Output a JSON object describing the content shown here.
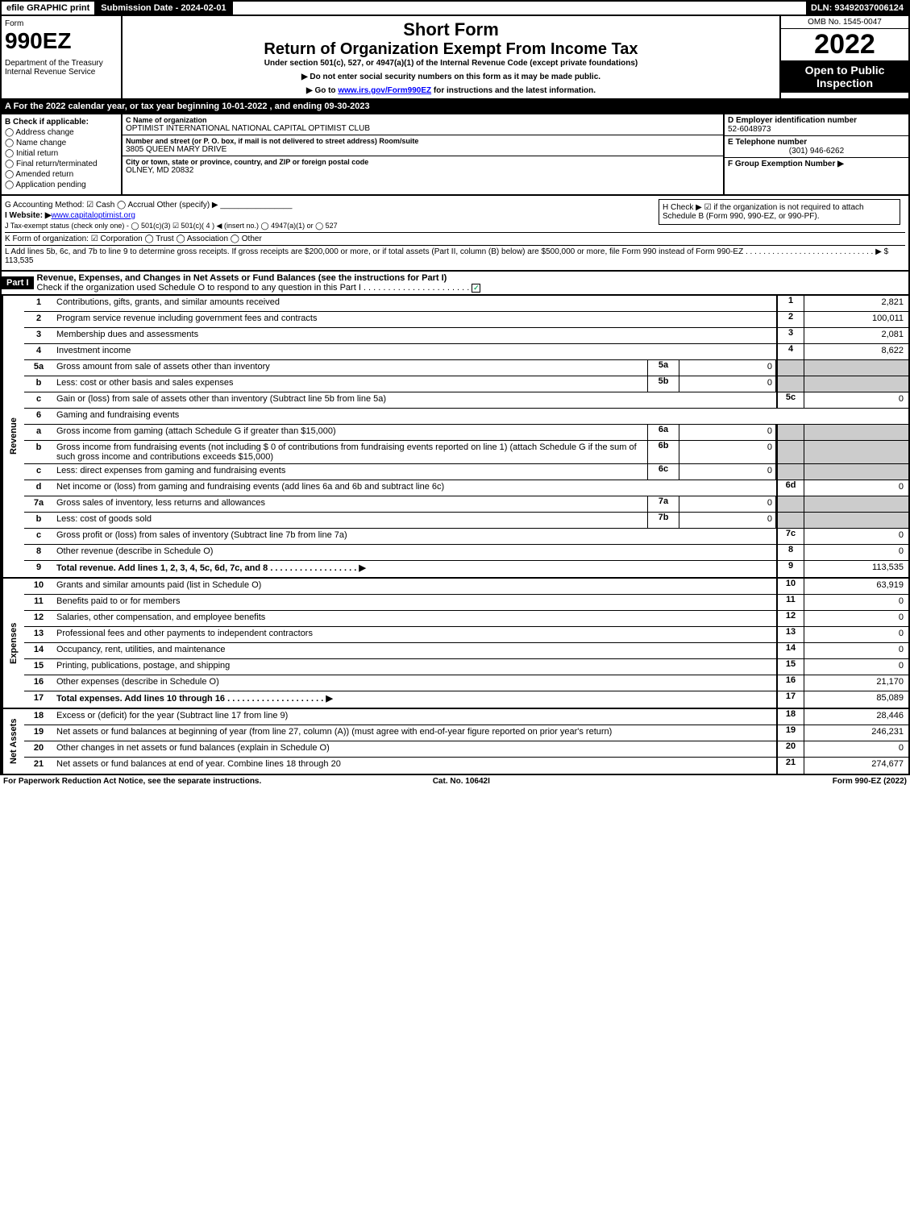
{
  "topbar": {
    "efile": "efile GRAPHIC print",
    "subdate": "Submission Date - 2024-02-01",
    "dln": "DLN: 93492037006124"
  },
  "header": {
    "form": "Form",
    "num": "990EZ",
    "dept": "Department of the Treasury\nInternal Revenue Service",
    "sf": "Short Form",
    "roe": "Return of Organization Exempt From Income Tax",
    "under": "Under section 501(c), 527, or 4947(a)(1) of the Internal Revenue Code (except private foundations)",
    "note1": "▶ Do not enter social security numbers on this form as it may be made public.",
    "note2_pre": "▶ Go to ",
    "note2_link": "www.irs.gov/Form990EZ",
    "note2_post": " for instructions and the latest information.",
    "omb": "OMB No. 1545-0047",
    "year": "2022",
    "open": "Open to Public Inspection"
  },
  "A": "A  For the 2022 calendar year, or tax year beginning 10-01-2022 , and ending 09-30-2023",
  "B": {
    "label": "B  Check if applicable:",
    "opts": [
      "Address change",
      "Name change",
      "Initial return",
      "Final return/terminated",
      "Amended return",
      "Application pending"
    ]
  },
  "C": {
    "name_h": "C Name of organization",
    "name": "OPTIMIST INTERNATIONAL NATIONAL CAPITAL OPTIMIST CLUB",
    "street_h": "Number and street (or P. O. box, if mail is not delivered to street address)        Room/suite",
    "street": "3805 QUEEN MARY DRIVE",
    "city_h": "City or town, state or province, country, and ZIP or foreign postal code",
    "city": "OLNEY, MD  20832"
  },
  "D": {
    "ein_h": "D Employer identification number",
    "ein": "52-6048973",
    "tel_h": "E Telephone number",
    "tel": "(301) 946-6262",
    "grp_h": "F Group Exemption Number   ▶"
  },
  "G": "G Accounting Method:   ☑ Cash   ◯ Accrual   Other (specify) ▶ ________________",
  "H": "H   Check ▶  ☑  if the organization is not required to attach Schedule B (Form 990, 990-EZ, or 990-PF).",
  "I": {
    "pre": "I Website: ▶",
    "link": "www.capitaloptimist.org"
  },
  "J": "J Tax-exempt status (check only one) -  ◯ 501(c)(3)  ☑  501(c)( 4 ) ◀ (insert no.)  ◯  4947(a)(1) or  ◯  527",
  "K": "K Form of organization:   ☑ Corporation   ◯ Trust   ◯ Association   ◯ Other",
  "L": "L Add lines 5b, 6c, and 7b to line 9 to determine gross receipts. If gross receipts are $200,000 or more, or if total assets (Part II, column (B) below) are $500,000 or more, file Form 990 instead of Form 990-EZ  . . . . . . . . . . . . . . . . . . . . . . . . . . . . .  ▶ $ 113,535",
  "part1": {
    "bar": "Part I",
    "title": "Revenue, Expenses, and Changes in Net Assets or Fund Balances (see the instructions for Part I)",
    "sub": "Check if the organization used Schedule O to respond to any question in this Part I . . . . . . . . . . . . . . . . . . . . . ."
  },
  "rows": [
    {
      "n": "1",
      "d": "Contributions, gifts, grants, and similar amounts received",
      "rn": "1",
      "rv": "2,821"
    },
    {
      "n": "2",
      "d": "Program service revenue including government fees and contracts",
      "rn": "2",
      "rv": "100,011"
    },
    {
      "n": "3",
      "d": "Membership dues and assessments",
      "rn": "3",
      "rv": "2,081"
    },
    {
      "n": "4",
      "d": "Investment income",
      "rn": "4",
      "rv": "8,622"
    },
    {
      "n": "5a",
      "d": "Gross amount from sale of assets other than inventory",
      "sub": "5a",
      "subv": "0"
    },
    {
      "n": "b",
      "d": "Less: cost or other basis and sales expenses",
      "sub": "5b",
      "subv": "0"
    },
    {
      "n": "c",
      "d": "Gain or (loss) from sale of assets other than inventory (Subtract line 5b from line 5a)",
      "rn": "5c",
      "rv": "0"
    },
    {
      "n": "6",
      "d": "Gaming and fundraising events"
    },
    {
      "n": "a",
      "d": "Gross income from gaming (attach Schedule G if greater than $15,000)",
      "sub": "6a",
      "subv": "0"
    },
    {
      "n": "b",
      "d": "Gross income from fundraising events (not including $  0          of contributions from fundraising events reported on line 1) (attach Schedule G if the sum of such gross income and contributions exceeds $15,000)",
      "sub": "6b",
      "subv": "0"
    },
    {
      "n": "c",
      "d": "Less: direct expenses from gaming and fundraising events",
      "sub": "6c",
      "subv": "0"
    },
    {
      "n": "d",
      "d": "Net income or (loss) from gaming and fundraising events (add lines 6a and 6b and subtract line 6c)",
      "rn": "6d",
      "rv": "0"
    },
    {
      "n": "7a",
      "d": "Gross sales of inventory, less returns and allowances",
      "sub": "7a",
      "subv": "0"
    },
    {
      "n": "b",
      "d": "Less: cost of goods sold",
      "sub": "7b",
      "subv": "0"
    },
    {
      "n": "c",
      "d": "Gross profit or (loss) from sales of inventory (Subtract line 7b from line 7a)",
      "rn": "7c",
      "rv": "0"
    },
    {
      "n": "8",
      "d": "Other revenue (describe in Schedule O)",
      "rn": "8",
      "rv": "0"
    },
    {
      "n": "9",
      "d": "Total revenue. Add lines 1, 2, 3, 4, 5c, 6d, 7c, and 8  . . . . . . . . . . . . . . . . . .   ▶",
      "rn": "9",
      "rv": "113,535",
      "bold": true
    }
  ],
  "exp": [
    {
      "n": "10",
      "d": "Grants and similar amounts paid (list in Schedule O)",
      "rn": "10",
      "rv": "63,919"
    },
    {
      "n": "11",
      "d": "Benefits paid to or for members",
      "rn": "11",
      "rv": "0"
    },
    {
      "n": "12",
      "d": "Salaries, other compensation, and employee benefits",
      "rn": "12",
      "rv": "0"
    },
    {
      "n": "13",
      "d": "Professional fees and other payments to independent contractors",
      "rn": "13",
      "rv": "0"
    },
    {
      "n": "14",
      "d": "Occupancy, rent, utilities, and maintenance",
      "rn": "14",
      "rv": "0"
    },
    {
      "n": "15",
      "d": "Printing, publications, postage, and shipping",
      "rn": "15",
      "rv": "0"
    },
    {
      "n": "16",
      "d": "Other expenses (describe in Schedule O)",
      "rn": "16",
      "rv": "21,170"
    },
    {
      "n": "17",
      "d": "Total expenses. Add lines 10 through 16    . . . . . . . . . . . . . . . . . . . .   ▶",
      "rn": "17",
      "rv": "85,089",
      "bold": true
    }
  ],
  "na": [
    {
      "n": "18",
      "d": "Excess or (deficit) for the year (Subtract line 17 from line 9)",
      "rn": "18",
      "rv": "28,446"
    },
    {
      "n": "19",
      "d": "Net assets or fund balances at beginning of year (from line 27, column (A)) (must agree with end-of-year figure reported on prior year's return)",
      "rn": "19",
      "rv": "246,231"
    },
    {
      "n": "20",
      "d": "Other changes in net assets or fund balances (explain in Schedule O)",
      "rn": "20",
      "rv": "0"
    },
    {
      "n": "21",
      "d": "Net assets or fund balances at end of year. Combine lines 18 through 20",
      "rn": "21",
      "rv": "274,677"
    }
  ],
  "sidelabels": {
    "rev": "Revenue",
    "exp": "Expenses",
    "na": "Net Assets"
  },
  "foot": {
    "l": "For Paperwork Reduction Act Notice, see the separate instructions.",
    "m": "Cat. No. 10642I",
    "r": "Form 990-EZ (2022)"
  }
}
